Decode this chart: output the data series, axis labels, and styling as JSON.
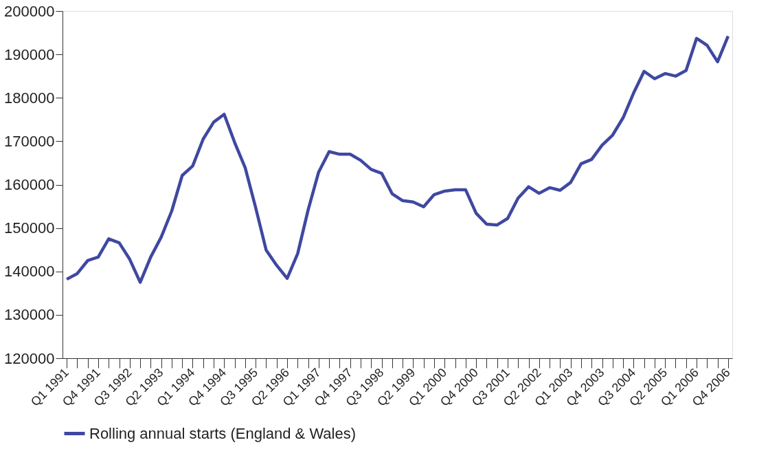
{
  "chart_data": {
    "type": "line",
    "categories": [
      "Q1 1991",
      null,
      null,
      "Q4 1991",
      null,
      null,
      "Q3 1992",
      null,
      null,
      "Q2 1993",
      null,
      null,
      "Q1 1994",
      null,
      null,
      "Q4 1994",
      null,
      null,
      "Q3 1995",
      null,
      null,
      "Q2 1996",
      null,
      null,
      "Q1 1997",
      null,
      null,
      "Q4 1997",
      null,
      null,
      "Q3 1998",
      null,
      null,
      "Q2 1999",
      null,
      null,
      "Q1 2000",
      null,
      null,
      "Q4 2000",
      null,
      null,
      "Q3 2001",
      null,
      null,
      "Q2 2002",
      null,
      null,
      "Q1 2003",
      null,
      null,
      "Q4 2003",
      null,
      null,
      "Q3 2004",
      null,
      null,
      "Q2 2005",
      null,
      null,
      "Q1 2006",
      null,
      null,
      "Q4 2006"
    ],
    "series": [
      {
        "name": "Rolling annual starts (England & Wales)",
        "color": "#3f48a0",
        "values": [
          138200,
          139500,
          142500,
          143300,
          147500,
          146600,
          142800,
          137500,
          143300,
          147900,
          153900,
          162100,
          164300,
          170500,
          174400,
          176200,
          169700,
          163900,
          154700,
          144900,
          141400,
          138400,
          144100,
          154200,
          162900,
          167600,
          167000,
          167000,
          165600,
          163500,
          162600,
          157900,
          156300,
          156000,
          154900,
          157700,
          158500,
          158800,
          158800,
          153400,
          150900,
          150700,
          152200,
          156900,
          159500,
          158000,
          159300,
          158700,
          160500,
          164800,
          165800,
          169100,
          171400,
          175400,
          181100,
          186100,
          184400,
          185600,
          185000,
          186300,
          193700,
          192100,
          188300,
          194200
        ]
      }
    ],
    "ylim": [
      120000,
      200000
    ],
    "yticks": [
      120000,
      130000,
      140000,
      150000,
      160000,
      170000,
      180000,
      190000,
      200000
    ],
    "grid": false,
    "legend": "bottom",
    "marker": "none",
    "line_style": "solid"
  }
}
